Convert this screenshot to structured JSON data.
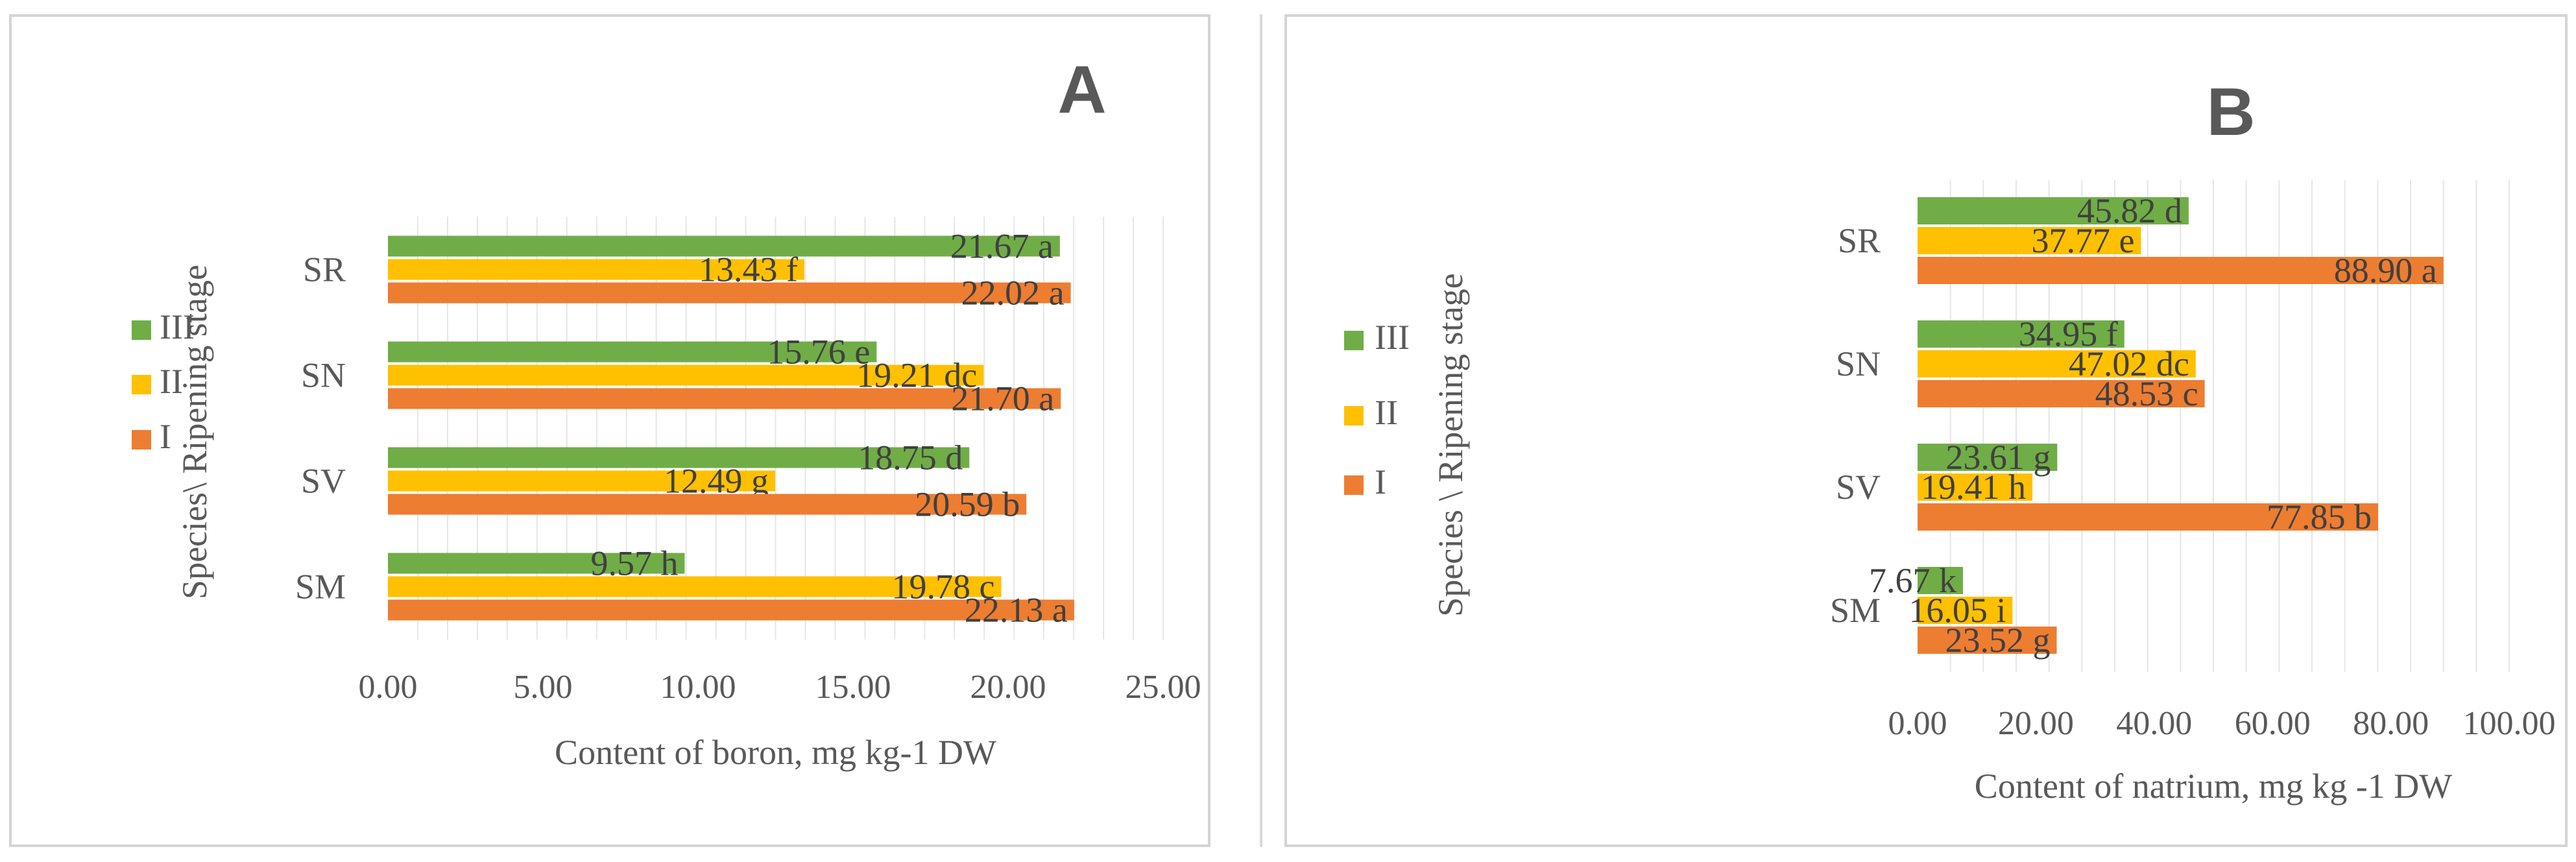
{
  "chart_data": [
    {
      "panel": "A",
      "type": "bar",
      "orientation": "horizontal",
      "categories": [
        "SM",
        "SV",
        "SN",
        "SR"
      ],
      "series": [
        {
          "name": "I",
          "color": "#ed7d31",
          "values": [
            22.13,
            20.59,
            21.7,
            22.02
          ],
          "labels": [
            "22.13 a",
            "20.59 b",
            "21.70 a",
            "22.02 a"
          ]
        },
        {
          "name": "II",
          "color": "#ffc000",
          "values": [
            19.78,
            12.49,
            19.21,
            13.43
          ],
          "labels": [
            "19.78 c",
            "12.49 g",
            "19.21 dc",
            "13.43 f"
          ]
        },
        {
          "name": "III",
          "color": "#70ad47",
          "values": [
            9.57,
            18.75,
            15.76,
            21.67
          ],
          "labels": [
            "9.57 h",
            "18.75 d",
            "15.76 e",
            "21.67 a"
          ]
        }
      ],
      "xlim": [
        0,
        25
      ],
      "xticks": [
        "0.00",
        "5.00",
        "10.00",
        "15.00",
        "20.00",
        "25.00"
      ],
      "xlabel": "Content of boron, mg kg-1 DW",
      "ylabel": "Species\\ Ripening stage",
      "legend_order": [
        "III",
        "II",
        "I"
      ],
      "legend": "left",
      "grid": true
    },
    {
      "panel": "B",
      "type": "bar",
      "orientation": "horizontal",
      "categories": [
        "SM",
        "SV",
        "SN",
        "SR"
      ],
      "series": [
        {
          "name": "I",
          "color": "#ed7d31",
          "values": [
            23.52,
            77.85,
            48.53,
            88.9
          ],
          "labels": [
            "23.52 g",
            "77.85 b",
            "48.53 c",
            "88.90 a"
          ]
        },
        {
          "name": "II",
          "color": "#ffc000",
          "values": [
            16.05,
            19.41,
            47.02,
            37.77
          ],
          "labels": [
            "16.05 i",
            "19.41 h",
            "47.02 dc",
            "37.77 e"
          ]
        },
        {
          "name": "III",
          "color": "#70ad47",
          "values": [
            7.67,
            23.61,
            34.95,
            45.82
          ],
          "labels": [
            "7.67 k",
            "23.61 g",
            "34.95 f",
            "45.82 d"
          ]
        }
      ],
      "xlim": [
        0,
        100
      ],
      "xticks": [
        "0.00",
        "20.00",
        "40.00",
        "60.00",
        "80.00",
        "100.00"
      ],
      "xlabel": "Content of natrium, mg kg -1 DW",
      "ylabel": "Species \\ Ripening stage",
      "legend_order": [
        "III",
        "II",
        "I"
      ],
      "legend": "left",
      "grid": true
    }
  ]
}
